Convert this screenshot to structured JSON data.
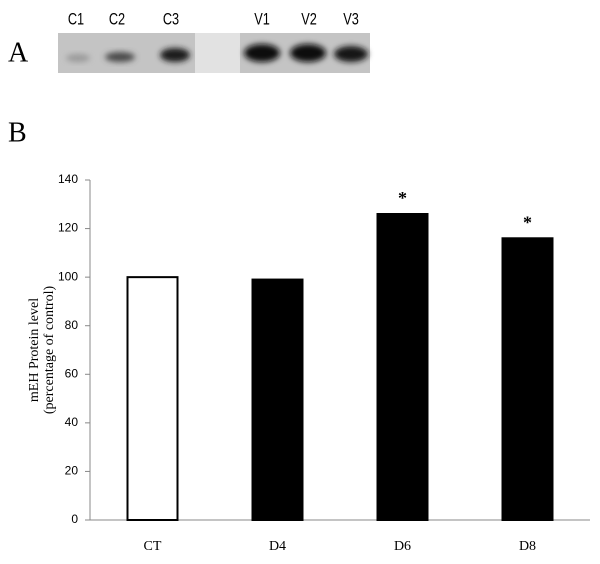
{
  "panel_labels": [
    "A",
    "B"
  ],
  "blot": {
    "lanes": [
      "C1",
      "C2",
      "C3",
      "V1",
      "V2",
      "V3"
    ]
  },
  "chart_data": {
    "type": "bar",
    "ylabel": [
      "mEH Protein level",
      "(percentage of control)"
    ],
    "categories": [
      "CT",
      "D4",
      "D6",
      "D8"
    ],
    "values": [
      100,
      99,
      126,
      116
    ],
    "colors": [
      "#ffffff",
      "#000000",
      "#000000",
      "#000000"
    ],
    "annotations": [
      null,
      null,
      "*",
      "*"
    ],
    "ylim": [
      0,
      140
    ],
    "yticks": [
      0,
      20,
      40,
      60,
      80,
      100,
      120,
      140
    ]
  }
}
